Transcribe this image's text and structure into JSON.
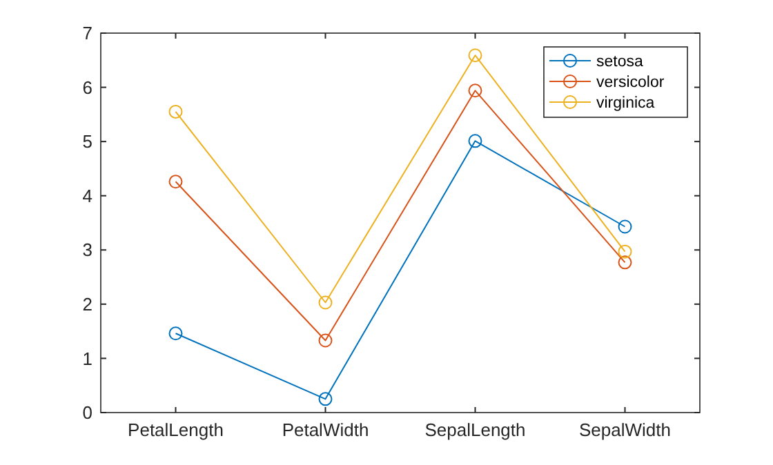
{
  "chart_data": {
    "type": "line",
    "categories": [
      "PetalLength",
      "PetalWidth",
      "SepalLength",
      "SepalWidth"
    ],
    "series": [
      {
        "name": "setosa",
        "color": "#0072bd",
        "values": [
          1.46,
          0.25,
          5.01,
          3.43
        ]
      },
      {
        "name": "versicolor",
        "color": "#d95319",
        "values": [
          4.26,
          1.33,
          5.94,
          2.77
        ]
      },
      {
        "name": "virginica",
        "color": "#edb120",
        "values": [
          5.55,
          2.03,
          6.59,
          2.97
        ]
      }
    ],
    "ylim": [
      0,
      7
    ],
    "yticks": [
      0,
      1,
      2,
      3,
      4,
      5,
      6,
      7
    ],
    "grid": false,
    "legend": "top right",
    "marker": "circle",
    "line_style": "solid"
  }
}
